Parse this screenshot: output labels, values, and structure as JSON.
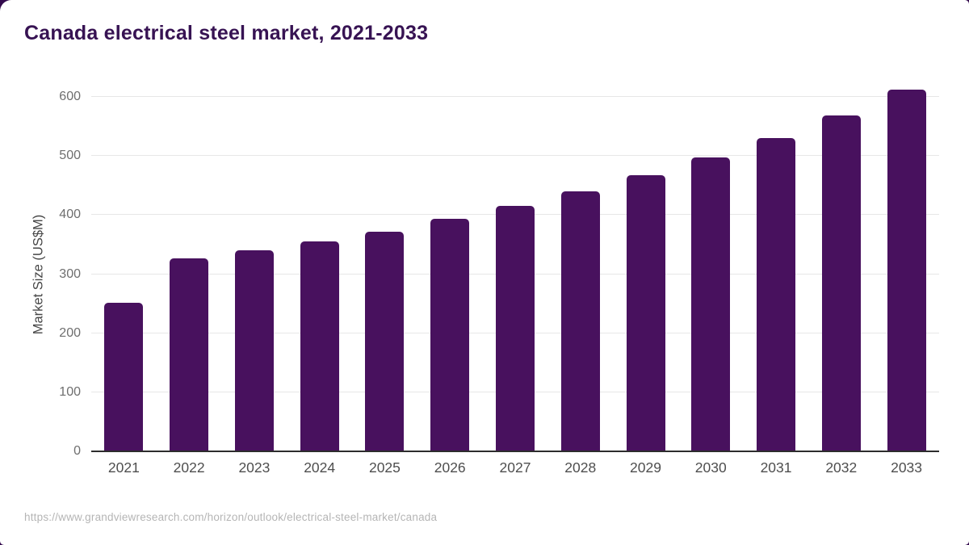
{
  "page": {
    "title": "Canada electrical steel market, 2021-2033",
    "source_url": "https://www.grandviewresearch.com/horizon/outlook/electrical-steel-market/canada"
  },
  "colors": {
    "bar": "#48115e",
    "title": "#371353",
    "background": "#330a4d",
    "gridline": "#e7e7e7",
    "axis_line": "#2d2d2d",
    "ytick_label": "#6e6e6e",
    "xtick_label": "#4e4e4e",
    "axis_title": "#464646",
    "source": "#b5b5b5"
  },
  "chart_data": {
    "type": "bar",
    "title": "Canada electrical steel market, 2021-2033",
    "xlabel": "",
    "ylabel": "Market Size (US$M)",
    "categories": [
      "2021",
      "2022",
      "2023",
      "2024",
      "2025",
      "2026",
      "2027",
      "2028",
      "2029",
      "2030",
      "2031",
      "2032",
      "2033"
    ],
    "values": [
      251,
      326,
      340,
      356,
      372,
      393,
      415,
      440,
      467,
      498,
      531,
      568,
      612
    ],
    "yticks": [
      0,
      100,
      200,
      300,
      400,
      500,
      600
    ],
    "ylim": [
      0,
      620
    ],
    "grid": "horizontal",
    "legend": "none",
    "bar_color": "#48115e"
  }
}
